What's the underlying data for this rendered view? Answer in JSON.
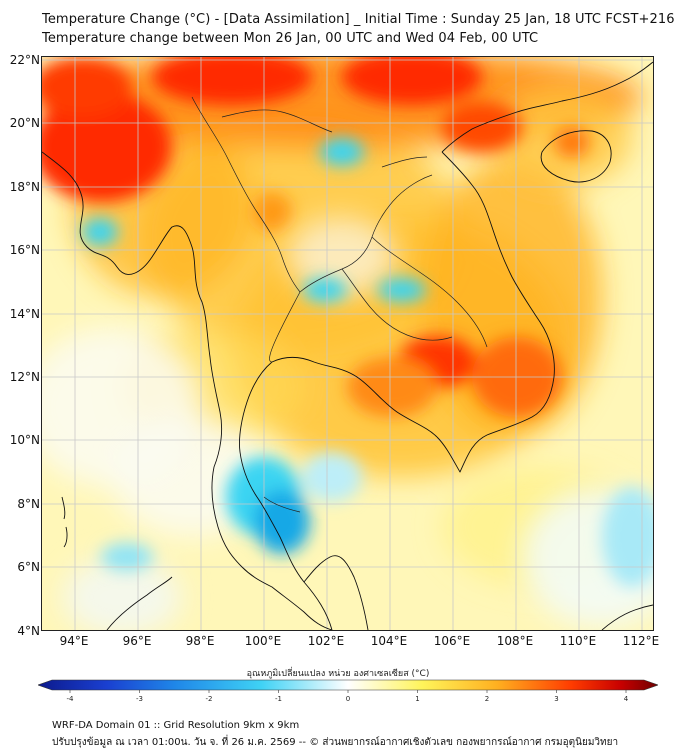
{
  "header": {
    "title_line1": "Temperature Change (°C) - [Data Assimilation] _ Initial Time : Sunday 25 Jan, 18 UTC FCST+216",
    "title_line2": "Temperature change between Mon 26 Jan, 00 UTC and Wed 04 Feb, 00 UTC"
  },
  "map": {
    "lat_labels": [
      "22°N",
      "20°N",
      "18°N",
      "16°N",
      "14°N",
      "12°N",
      "10°N",
      "8°N",
      "6°N",
      "4°N"
    ],
    "lon_labels": [
      "94°E",
      "96°E",
      "98°E",
      "100°E",
      "102°E",
      "104°E",
      "106°E",
      "108°E",
      "110°E",
      "112°E"
    ],
    "colors": {
      "base": "#fff7b8",
      "warm_orange": "#ffb21f",
      "hot_red": "#ff2a00",
      "cool_cyan": "#3ad4f2",
      "cold_blue": "#12a8e6",
      "neutral_white": "#fbfbf2",
      "coastline": "#111111",
      "gridline": "#c8c8c8"
    }
  },
  "colorbar": {
    "title": "อุณหภูมิเปลี่ยนแปลง หน่วย องศาเซลเซียส (°C)",
    "ticks": [
      "-4",
      "-3",
      "-2",
      "-1",
      "0",
      "1",
      "2",
      "3",
      "4"
    ],
    "gradient_stops": [
      "#0c1a8c",
      "#1a3fd0",
      "#1f86e8",
      "#3fd2f5",
      "#ffffff",
      "#fff45a",
      "#ffb020",
      "#ff3c00",
      "#c80000",
      "#6e0000"
    ]
  },
  "footer": {
    "line1": "WRF-DA Domain 01 :: Grid Resolution 9km x 9km",
    "line2": "ปรับปรุงข้อมูล ณ เวลา 01:00น. วัน จ. ที่ 26 ม.ค. 2569 -- © ส่วนพยากรณ์อากาศเชิงตัวเลข กองพยากรณ์อากาศ กรมอุตุนิยมวิทยา"
  }
}
